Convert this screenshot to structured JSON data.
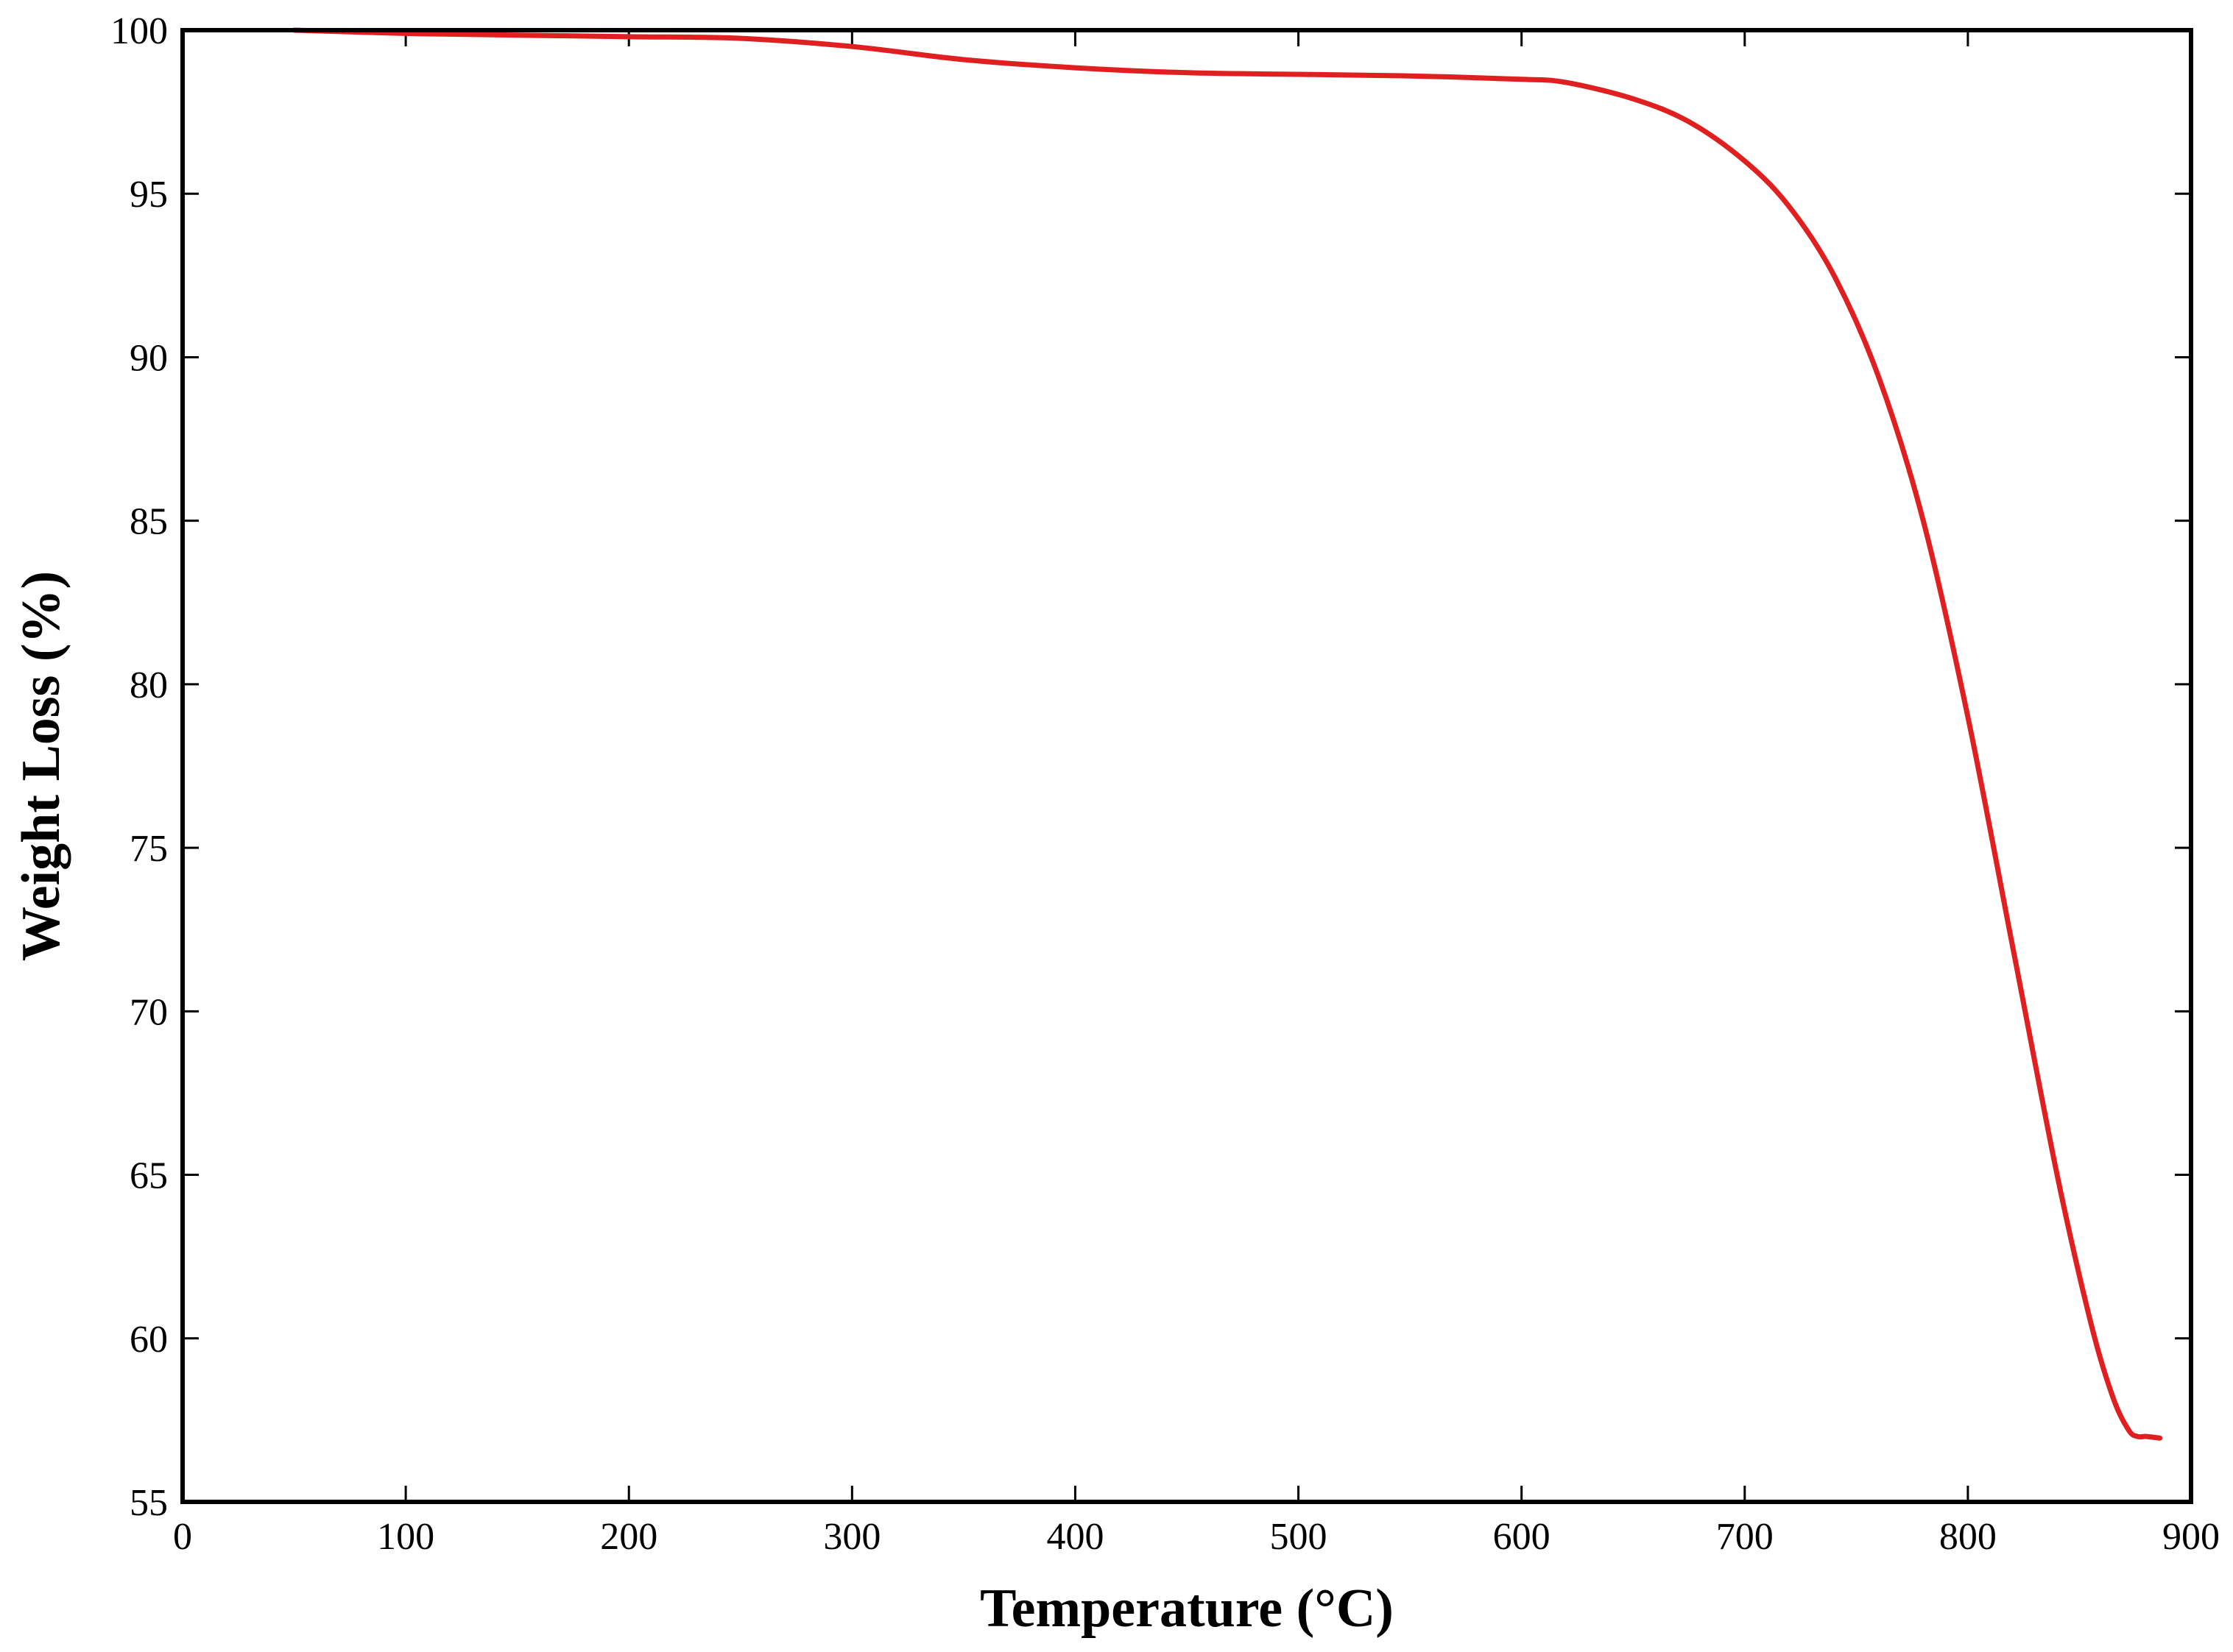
{
  "chart_data": {
    "type": "line",
    "title": "",
    "xlabel": "Temperature (°C)",
    "ylabel": "Weight Loss (%)",
    "xlim": [
      0,
      900
    ],
    "ylim": [
      55,
      100
    ],
    "xticks": [
      "0",
      "100",
      "200",
      "300",
      "400",
      "500",
      "600",
      "700",
      "800",
      "900"
    ],
    "yticks": [
      "55",
      "60",
      "65",
      "70",
      "75",
      "80",
      "85",
      "90",
      "95",
      "100"
    ],
    "grid": false,
    "legend": "none",
    "series": [
      {
        "color": "#e02020",
        "x": [
          50,
          100,
          150,
          200,
          250,
          300,
          350,
          400,
          450,
          500,
          550,
          600,
          620,
          650,
          675,
          700,
          720,
          740,
          760,
          780,
          800,
          820,
          840,
          855,
          865,
          872,
          876,
          880,
          886
        ],
        "y": [
          100.0,
          99.9,
          99.85,
          99.8,
          99.75,
          99.5,
          99.1,
          98.85,
          98.7,
          98.65,
          98.6,
          98.5,
          98.4,
          97.9,
          97.2,
          96.0,
          94.6,
          92.5,
          89.4,
          85.0,
          79.0,
          72.0,
          65.0,
          60.5,
          58.2,
          57.2,
          57.0,
          57.0,
          56.95
        ]
      }
    ]
  }
}
